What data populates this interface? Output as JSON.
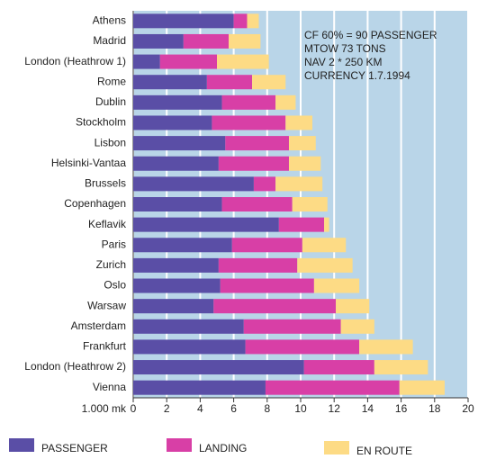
{
  "chart_data": {
    "type": "bar",
    "stacked": true,
    "grid": true,
    "xlabel": "1.000 mk",
    "categories": [
      "Athens",
      "Madrid",
      "London (Heathrow 1)",
      "Rome",
      "Dublin",
      "Stockholm",
      "Lisbon",
      "Helsinki-Vantaa",
      "Brussels",
      "Copenhagen",
      "Keflavik",
      "Paris",
      "Zurich",
      "Oslo",
      "Warsaw",
      "Amsterdam",
      "Frankfurt",
      "London (Heathrow 2)",
      "Vienna"
    ],
    "series": [
      {
        "name": "PASSENGER",
        "color": "#5a4ea6",
        "values": [
          6.0,
          3.0,
          1.6,
          4.4,
          5.3,
          4.7,
          5.5,
          5.1,
          7.2,
          5.3,
          8.7,
          5.9,
          5.1,
          5.2,
          4.8,
          6.6,
          6.7,
          10.2,
          7.9
        ]
      },
      {
        "name": "LANDING",
        "color": "#d83fa6",
        "values": [
          0.8,
          2.7,
          3.4,
          2.7,
          3.2,
          4.4,
          3.8,
          4.2,
          1.3,
          4.2,
          2.7,
          4.2,
          4.7,
          5.6,
          7.3,
          5.8,
          6.8,
          4.2,
          8.0
        ]
      },
      {
        "name": "EN ROUTE",
        "color": "#fddb85",
        "values": [
          0.7,
          1.9,
          3.1,
          2.0,
          1.2,
          1.6,
          1.6,
          1.9,
          2.8,
          2.1,
          0.3,
          2.6,
          3.3,
          2.7,
          2.0,
          2.0,
          3.2,
          3.2,
          2.7
        ]
      }
    ],
    "xlim": [
      0,
      20
    ],
    "xticks": [
      0,
      2,
      4,
      6,
      8,
      10,
      12,
      14,
      16,
      18,
      20
    ],
    "annotations": [
      "CF 60% = 90 PASSENGER",
      "MTOW 73 TONS",
      "NAV 2 * 250 KM",
      "CURRENCY 1.7.1994"
    ]
  }
}
